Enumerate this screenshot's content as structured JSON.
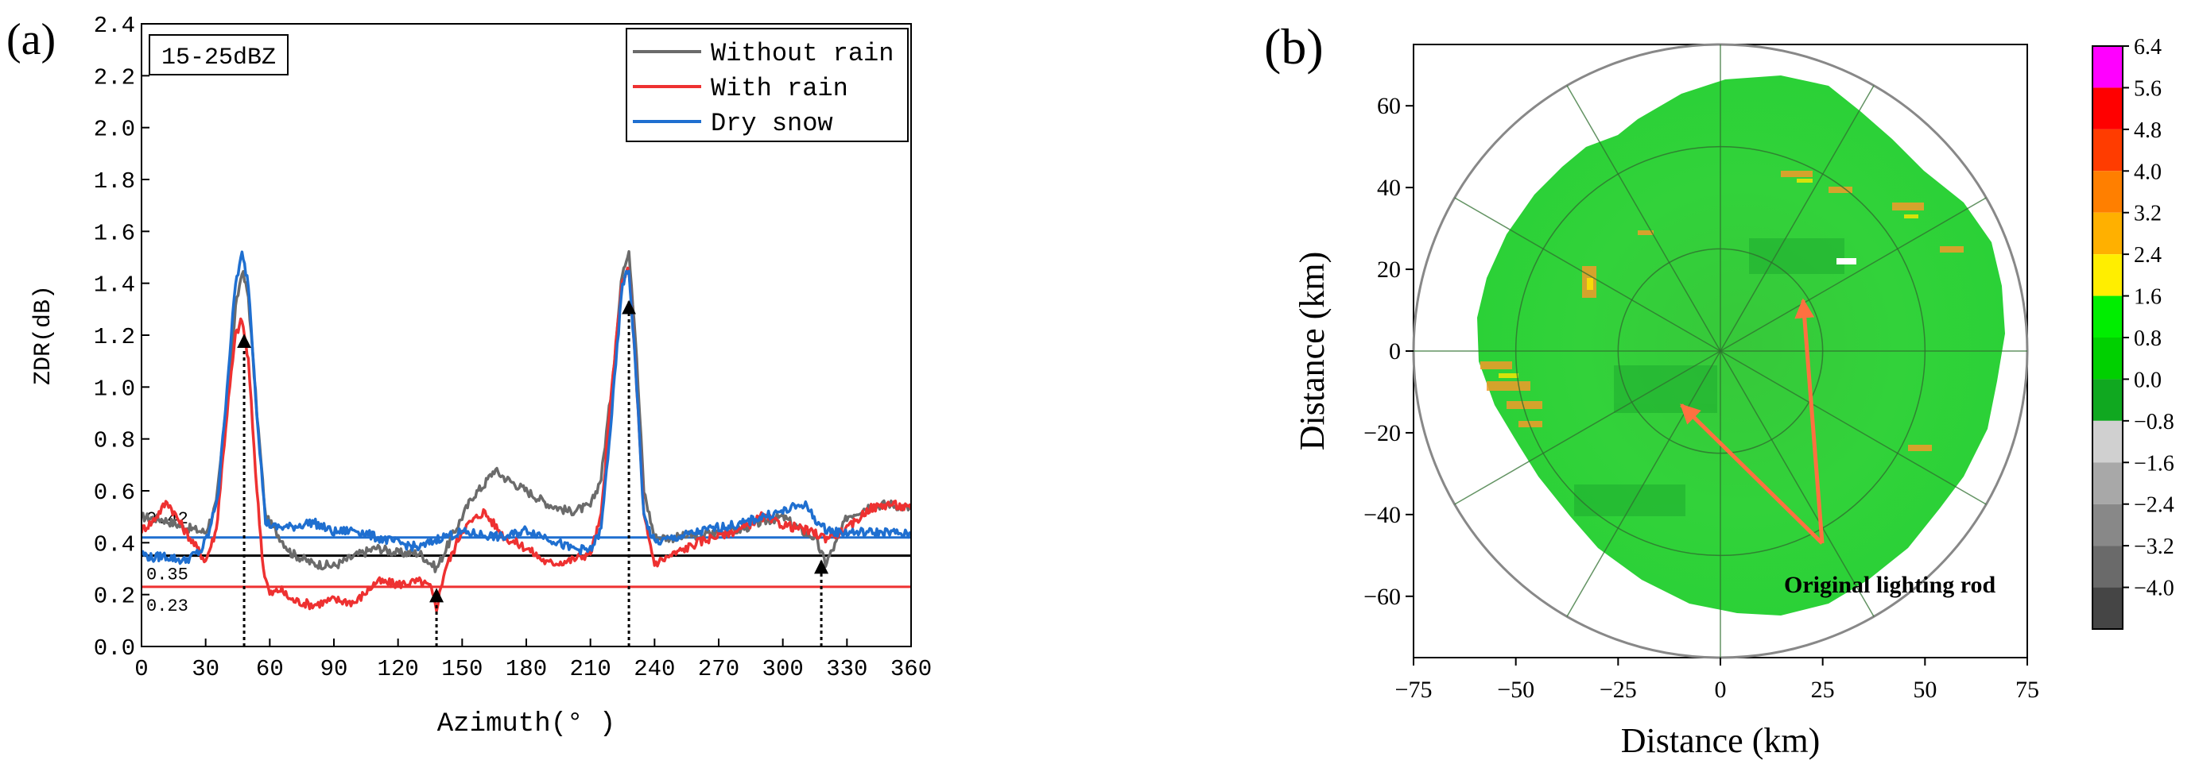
{
  "chart_data": [
    {
      "panel_label": "(a)",
      "type": "line",
      "xlabel": "Azimuth(° )",
      "ylabel": "ZDR(dB)",
      "xlim": [
        0,
        360
      ],
      "ylim": [
        0,
        2.4
      ],
      "xticks": [
        0,
        30,
        60,
        90,
        120,
        150,
        180,
        210,
        240,
        270,
        300,
        330,
        360
      ],
      "yticks": [
        "0.0",
        "0.2",
        "0.4",
        "0.6",
        "0.8",
        "1.0",
        "1.2",
        "1.4",
        "1.6",
        "1.8",
        "2.0",
        "2.2",
        "2.4"
      ],
      "annotation_box": "15-25dBZ",
      "legend_position": "top-right",
      "series": [
        {
          "name": "Without rain",
          "color": "#6b6b6b",
          "x": [
            0,
            10,
            20,
            30,
            35,
            40,
            44,
            47,
            50,
            54,
            58,
            64,
            70,
            80,
            90,
            100,
            110,
            120,
            130,
            138,
            145,
            150,
            155,
            160,
            165,
            170,
            180,
            190,
            200,
            210,
            215,
            220,
            225,
            228,
            231,
            235,
            240,
            250,
            260,
            270,
            280,
            290,
            300,
            310,
            315,
            320,
            325,
            330,
            340,
            350,
            360
          ],
          "y": [
            0.5,
            0.49,
            0.46,
            0.44,
            0.55,
            0.95,
            1.3,
            1.45,
            1.35,
            0.9,
            0.5,
            0.43,
            0.36,
            0.32,
            0.31,
            0.35,
            0.38,
            0.36,
            0.36,
            0.3,
            0.42,
            0.5,
            0.58,
            0.62,
            0.68,
            0.65,
            0.6,
            0.55,
            0.52,
            0.54,
            0.65,
            1.0,
            1.45,
            1.53,
            1.2,
            0.6,
            0.42,
            0.42,
            0.43,
            0.44,
            0.45,
            0.48,
            0.5,
            0.44,
            0.42,
            0.32,
            0.4,
            0.5,
            0.54,
            0.55,
            0.53
          ]
        },
        {
          "name": "With rain",
          "color": "#ee3131",
          "x": [
            0,
            5,
            12,
            20,
            30,
            35,
            40,
            44,
            47,
            50,
            54,
            57,
            60,
            65,
            70,
            80,
            90,
            100,
            110,
            120,
            130,
            135,
            138,
            142,
            145,
            150,
            160,
            170,
            180,
            190,
            200,
            210,
            215,
            220,
            225,
            228,
            231,
            235,
            240,
            250,
            260,
            270,
            280,
            290,
            300,
            310,
            320,
            330,
            340,
            350,
            360
          ],
          "y": [
            0.45,
            0.48,
            0.56,
            0.45,
            0.33,
            0.45,
            0.9,
            1.2,
            1.26,
            1.1,
            0.6,
            0.3,
            0.2,
            0.22,
            0.18,
            0.16,
            0.18,
            0.17,
            0.25,
            0.24,
            0.25,
            0.23,
            0.15,
            0.3,
            0.35,
            0.45,
            0.52,
            0.42,
            0.38,
            0.32,
            0.33,
            0.36,
            0.5,
            1.0,
            1.42,
            1.45,
            1.1,
            0.5,
            0.32,
            0.36,
            0.4,
            0.43,
            0.45,
            0.5,
            0.47,
            0.45,
            0.42,
            0.45,
            0.53,
            0.55,
            0.53
          ]
        },
        {
          "name": "Dry snow",
          "color": "#1f6fd0",
          "x": [
            0,
            5,
            10,
            20,
            28,
            32,
            36,
            40,
            44,
            47,
            50,
            54,
            58,
            62,
            70,
            80,
            90,
            100,
            110,
            120,
            130,
            140,
            150,
            160,
            170,
            180,
            190,
            200,
            210,
            215,
            220,
            225,
            228,
            231,
            235,
            240,
            250,
            260,
            270,
            280,
            290,
            300,
            310,
            318,
            325,
            330,
            340,
            350,
            360
          ],
          "y": [
            0.36,
            0.34,
            0.35,
            0.33,
            0.37,
            0.45,
            0.6,
            1.0,
            1.4,
            1.51,
            1.4,
            0.9,
            0.48,
            0.46,
            0.46,
            0.48,
            0.44,
            0.45,
            0.42,
            0.4,
            0.38,
            0.42,
            0.44,
            0.43,
            0.42,
            0.45,
            0.42,
            0.38,
            0.37,
            0.45,
            0.9,
            1.4,
            1.45,
            1.1,
            0.5,
            0.4,
            0.42,
            0.44,
            0.46,
            0.47,
            0.5,
            0.52,
            0.55,
            0.46,
            0.44,
            0.44,
            0.44,
            0.44,
            0.43
          ]
        }
      ],
      "hlines": [
        {
          "value": 0.42,
          "label": "0.42",
          "color": "#1f6fd0"
        },
        {
          "value": 0.35,
          "label": "0.35",
          "color": "#000000"
        },
        {
          "value": 0.23,
          "label": "0.23",
          "color": "#ee3131"
        }
      ],
      "arrows": [
        {
          "x": 48,
          "y_from": 0,
          "y_to": 1.2
        },
        {
          "x": 138,
          "y_from": 0,
          "y_to": 0.22
        },
        {
          "x": 228,
          "y_from": 0,
          "y_to": 1.33
        },
        {
          "x": 318,
          "y_from": 0,
          "y_to": 0.33
        }
      ]
    },
    {
      "panel_label": "(b)",
      "type": "heatmap",
      "xlabel": "Distance (km)",
      "ylabel": "Distance (km)",
      "xlim": [
        -75,
        75
      ],
      "ylim": [
        -75,
        75
      ],
      "xticks": [
        "−75",
        "−50",
        "−25",
        "0",
        "25",
        "50",
        "75"
      ],
      "yticks": [
        "−60",
        "−40",
        "−20",
        "0",
        "20",
        "40",
        "60"
      ],
      "range_rings_km": [
        25,
        50,
        75
      ],
      "annotation": "Original lighting rod",
      "colorbar_labels": [
        "6.4",
        "5.6",
        "4.8",
        "4.0",
        "3.2",
        "2.4",
        "1.6",
        "0.8",
        "0.0",
        "−0.8",
        "−1.6",
        "−2.4",
        "−3.2",
        "−4.0"
      ],
      "colorbar_colors": [
        "#ff00ff",
        "#ff0000",
        "#ff3c00",
        "#ff7f00",
        "#ffb000",
        "#ffee00",
        "#00ee00",
        "#00d000",
        "#10a820",
        "#d0d0d0",
        "#a8a8a8",
        "#888888",
        "#6a6a6a",
        "#454545"
      ]
    }
  ]
}
